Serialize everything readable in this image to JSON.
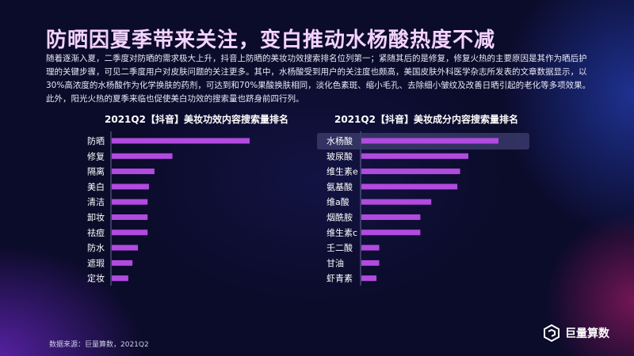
{
  "title": "防晒因夏季带来关注，变白推动水杨酸热度不减",
  "intro": "随着逐渐入夏，二季度对防晒的需求极大上升，抖音上防晒的美妆功效搜索排名位列第一；紧随其后的是修复，修复火热的主要原因是其作为晒后护理的关键步骤，可见二季度用户对皮肤问题的关注更多。其中，水杨酸受到用户的关注度也颇高，美国皮肤外科医学杂志所发表的文章数据显示，以30%高浓度的水杨酸作为化学换肤的药剂，可达到和70%果酸换肤相同，淡化色素斑、缩小毛孔、去除细小皱纹及改善日晒引起的老化等多项效果。此外，阳光火热的夏季来临也促使美白功效的搜索量也跻身前四行列。",
  "source": "数据来源：巨量算数，2021Q2",
  "logo_text": "巨量算数",
  "logo_icon": "juliang-logo-icon",
  "colors": {
    "bar": "#b24ae0",
    "highlight": "#3a3a6a",
    "title": "#f4d3ff"
  },
  "chart_data": [
    {
      "type": "bar",
      "orientation": "horizontal",
      "title": "2021Q2【抖音】美妆功效内容搜索量排名",
      "categories": [
        "防晒",
        "修复",
        "隔离",
        "美白",
        "清洁",
        "卸妆",
        "祛痘",
        "防水",
        "遮瑕",
        "定妆"
      ],
      "values": [
        100,
        44,
        31,
        27,
        26,
        26,
        26,
        19,
        15,
        12
      ],
      "xlim": [
        0,
        100
      ]
    },
    {
      "type": "bar",
      "orientation": "horizontal",
      "title": "2021Q2【抖音】美妆成分内容搜索量排名",
      "categories": [
        "水杨酸",
        "玻尿酸",
        "维生素e",
        "氨基酸",
        "维a酸",
        "烟酰胺",
        "维生素c",
        "壬二酸",
        "甘油",
        "虾青素"
      ],
      "values": [
        100,
        78,
        72,
        70,
        51,
        43,
        43,
        13,
        13,
        11
      ],
      "xlim": [
        0,
        100
      ],
      "highlight": "水杨酸"
    }
  ]
}
